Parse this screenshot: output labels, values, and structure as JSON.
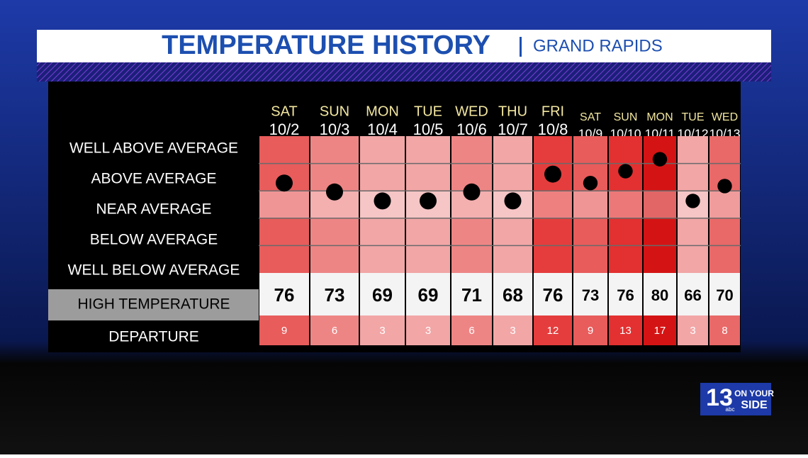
{
  "header": {
    "title": "TEMPERATURE HISTORY",
    "subtitle": "GRAND RAPIDS"
  },
  "row_labels": [
    "WELL ABOVE AVERAGE",
    "ABOVE AVERAGE",
    "NEAR AVERAGE",
    "BELOW AVERAGE",
    "WELL BELOW AVERAGE",
    "HIGH TEMPERATURE",
    "DEPARTURE"
  ],
  "columns": [
    {
      "day": "SAT",
      "date": "10/2",
      "high": 76,
      "departure": 9,
      "color": "#e85c5c"
    },
    {
      "day": "SUN",
      "date": "10/3",
      "high": 73,
      "departure": 6,
      "color": "#ee8585"
    },
    {
      "day": "MON",
      "date": "10/4",
      "high": 69,
      "departure": 3,
      "color": "#f2a6a6"
    },
    {
      "day": "TUE",
      "date": "10/5",
      "high": 69,
      "departure": 3,
      "color": "#f2a6a6"
    },
    {
      "day": "WED",
      "date": "10/6",
      "high": 71,
      "departure": 6,
      "color": "#ee8585"
    },
    {
      "day": "THU",
      "date": "10/7",
      "high": 68,
      "departure": 3,
      "color": "#f2a6a6"
    },
    {
      "day": "FRI",
      "date": "10/8",
      "high": 76,
      "departure": 12,
      "color": "#e53d3d"
    },
    {
      "day": "SAT",
      "date": "10/9",
      "high": 73,
      "departure": 9,
      "color": "#e85c5c"
    },
    {
      "day": "SUN",
      "date": "10/10",
      "high": 76,
      "departure": 13,
      "color": "#e33030"
    },
    {
      "day": "MON",
      "date": "10/11",
      "high": 80,
      "departure": 17,
      "color": "#d41414"
    },
    {
      "day": "TUE",
      "date": "10/12",
      "high": 66,
      "departure": 3,
      "color": "#f2a6a6"
    },
    {
      "day": "WED",
      "date": "10/13",
      "high": 70,
      "departure": 8,
      "color": "#e96868"
    }
  ],
  "logo": {
    "number": "13",
    "line1": "ON YOUR",
    "line2": "SIDE",
    "network": "abc"
  }
}
